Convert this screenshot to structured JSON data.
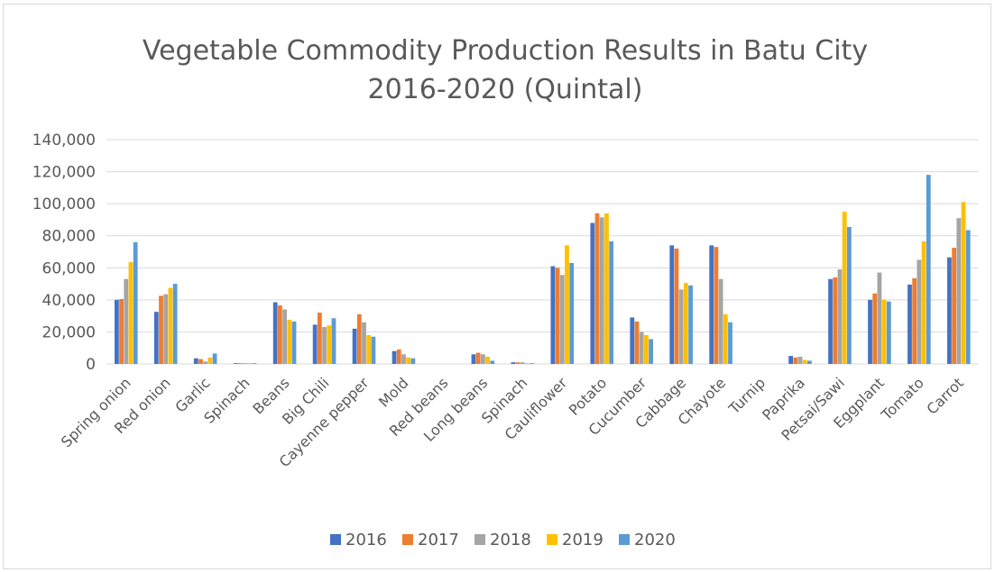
{
  "chart_data": {
    "type": "bar",
    "title_lines": [
      "Vegetable Commodity Production Results in Batu City",
      "2016-2020 (Quintal)"
    ],
    "xlabel": "",
    "ylabel": "",
    "ylim": [
      0,
      140000
    ],
    "yticks": [
      0,
      20000,
      40000,
      60000,
      80000,
      100000,
      120000,
      140000
    ],
    "ytick_labels": [
      "0",
      "20,000",
      "40,000",
      "60,000",
      "80,000",
      "100,000",
      "120,000",
      "140,000"
    ],
    "grid": true,
    "legend_position": "bottom",
    "categories": [
      "Spring onion",
      "Red onion",
      "Garlic",
      "Spinach",
      "Beans",
      "Big Chili",
      "Cayenne pepper",
      "Mold",
      "Red beans",
      "Long beans",
      "Spinach",
      "Cauliflower",
      "Potato",
      "Cucumber",
      "Cabbage",
      "Chayote",
      "Turnip",
      "Paprika",
      "Petsai/Sawi",
      "Eggplant",
      "Tomato",
      "Carrot"
    ],
    "series": [
      {
        "name": "2016",
        "color": "#4472c4",
        "values": [
          40000,
          32500,
          3500,
          500,
          38500,
          24500,
          22000,
          8000,
          0,
          6000,
          1000,
          61000,
          88000,
          29000,
          74000,
          74000,
          0,
          5000,
          53000,
          40000,
          49500,
          66500
        ]
      },
      {
        "name": "2017",
        "color": "#ed7d31",
        "values": [
          40500,
          42500,
          3000,
          500,
          36500,
          32000,
          31000,
          9000,
          0,
          7000,
          1000,
          60000,
          94000,
          26500,
          72000,
          73000,
          0,
          4000,
          54000,
          44000,
          53500,
          72500
        ]
      },
      {
        "name": "2018",
        "color": "#a5a5a5",
        "values": [
          53000,
          43500,
          1500,
          500,
          34000,
          23000,
          26000,
          6000,
          0,
          6000,
          1000,
          55500,
          91500,
          20000,
          46500,
          53000,
          0,
          4500,
          59000,
          57000,
          65000,
          91000
        ]
      },
      {
        "name": "2019",
        "color": "#ffc000",
        "values": [
          63500,
          47500,
          4000,
          500,
          27500,
          24000,
          18000,
          4000,
          0,
          4500,
          500,
          74000,
          94000,
          18000,
          50500,
          31000,
          0,
          2500,
          95000,
          40000,
          76500,
          101000
        ]
      },
      {
        "name": "2020",
        "color": "#5b9bd5",
        "values": [
          76000,
          50000,
          6500,
          500,
          26500,
          28500,
          17000,
          3500,
          0,
          2000,
          500,
          63000,
          76500,
          15500,
          49000,
          26000,
          0,
          2000,
          85500,
          39000,
          118000,
          83500
        ]
      }
    ]
  }
}
